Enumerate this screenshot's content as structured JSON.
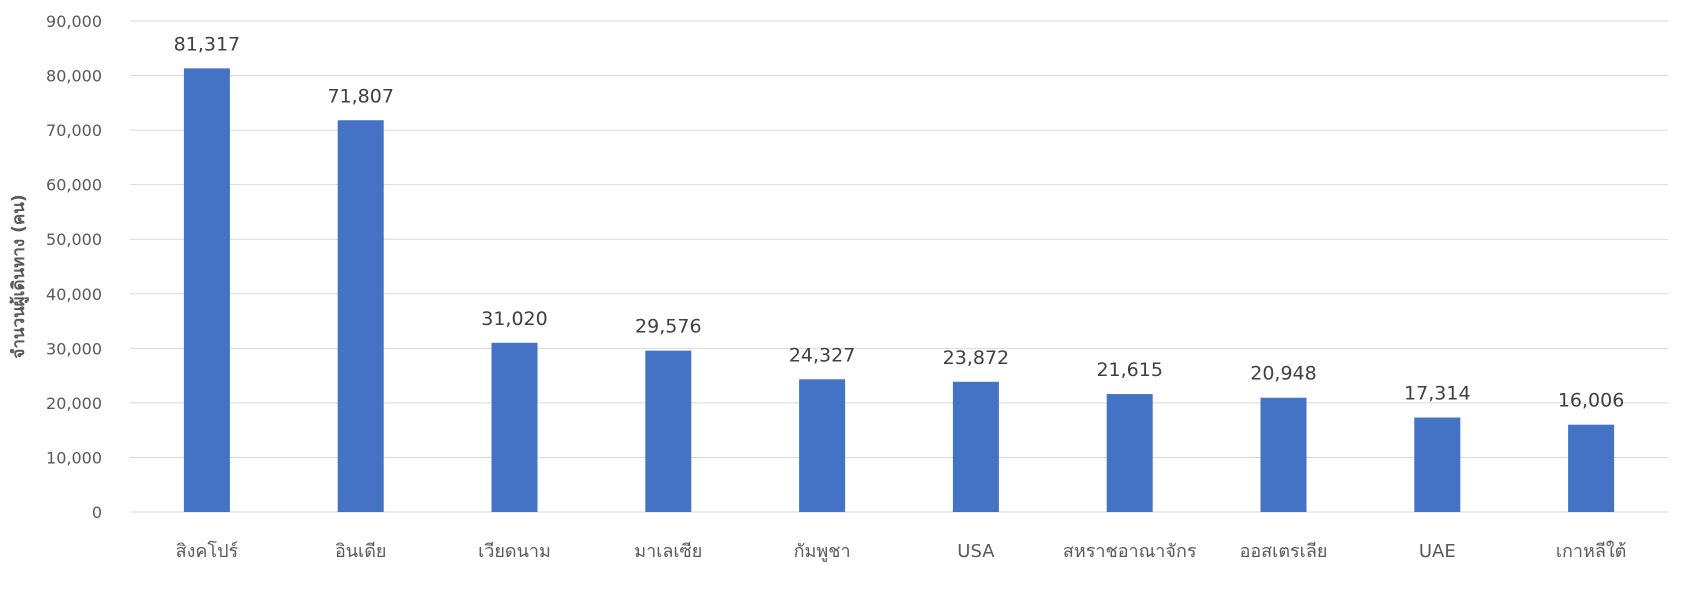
{
  "chart_data": {
    "type": "bar",
    "title": "",
    "xlabel": "",
    "ylabel": "จำนวนผู้เดินทาง (คน)",
    "categories": [
      "สิงคโปร์",
      "อินเดีย",
      "เวียดนาม",
      "มาเลเซีย",
      "กัมพูชา",
      "USA",
      "สหราชอาณาจักร",
      "ออสเตรเลีย",
      "UAE",
      "เกาหลีใต้"
    ],
    "values": [
      81317,
      71807,
      31020,
      29576,
      24327,
      23872,
      21615,
      20948,
      17314,
      16006
    ],
    "value_labels": [
      "81,317",
      "71,807",
      "31,020",
      "29,576",
      "24,327",
      "23,872",
      "21,615",
      "20,948",
      "17,314",
      "16,006"
    ],
    "ylim": [
      0,
      90000
    ],
    "y_ticks": [
      0,
      10000,
      20000,
      30000,
      40000,
      50000,
      60000,
      70000,
      80000,
      90000
    ],
    "y_tick_labels": [
      "0",
      "10,000",
      "20,000",
      "30,000",
      "40,000",
      "50,000",
      "60,000",
      "70,000",
      "80,000",
      "90,000"
    ],
    "grid": true,
    "legend": "none",
    "colors": {
      "bar": "#4472C4",
      "grid": "#D9D9D9",
      "text": "#595959",
      "value_label": "#404040"
    }
  }
}
